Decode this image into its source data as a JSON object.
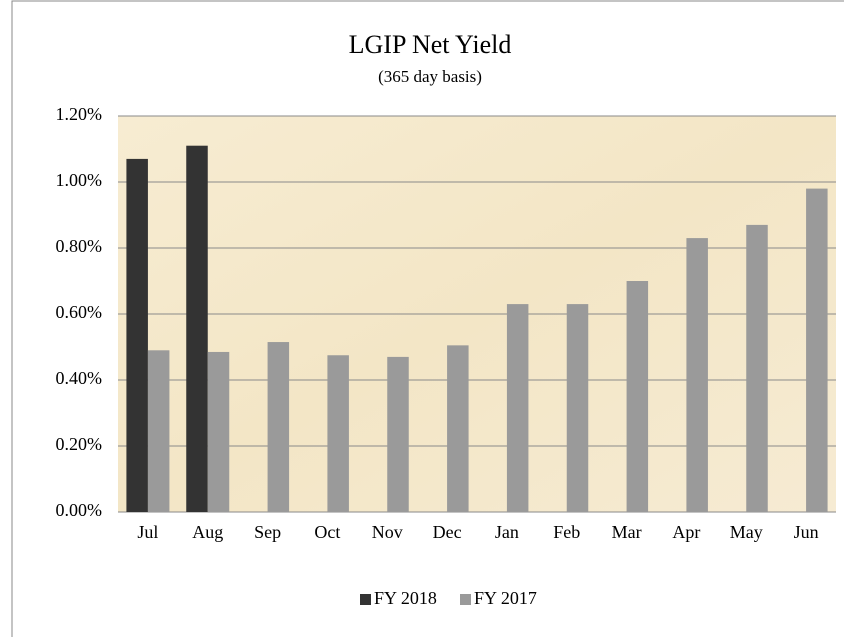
{
  "chart_data": {
    "type": "bar",
    "title": "LGIP Net Yield",
    "subtitle": "(365 day basis)",
    "categories": [
      "Jul",
      "Aug",
      "Sep",
      "Oct",
      "Nov",
      "Dec",
      "Jan",
      "Feb",
      "Mar",
      "Apr",
      "May",
      "Jun"
    ],
    "series": [
      {
        "name": "FY 2018",
        "color": "#333333",
        "values": [
          1.07,
          1.11,
          null,
          null,
          null,
          null,
          null,
          null,
          null,
          null,
          null,
          null
        ]
      },
      {
        "name": "FY 2017",
        "color": "#9a9a9a",
        "values": [
          0.49,
          0.485,
          0.515,
          0.475,
          0.47,
          0.505,
          0.63,
          0.63,
          0.7,
          0.83,
          0.87,
          0.98
        ]
      }
    ],
    "ylim": [
      0,
      1.2
    ],
    "yticks": [
      {
        "value": 0,
        "label": "0.00%"
      },
      {
        "value": 0.2,
        "label": "0.20%"
      },
      {
        "value": 0.4,
        "label": "0.40%"
      },
      {
        "value": 0.6,
        "label": "0.60%"
      },
      {
        "value": 0.8,
        "label": "0.80%"
      },
      {
        "value": 1.0,
        "label": "1.00%"
      },
      {
        "value": 1.2,
        "label": "1.20%"
      }
    ],
    "grid": true,
    "legend": "bottom"
  }
}
